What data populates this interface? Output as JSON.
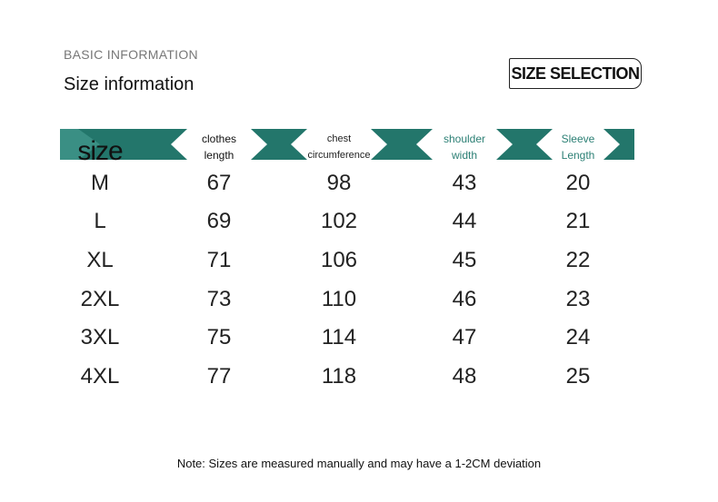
{
  "header": {
    "subtitle": "BASIC INFORMATION",
    "title": "Size information",
    "badge": "SIZE SELECTION"
  },
  "table": {
    "columns": [
      "size",
      "clothes length",
      "chest circumference",
      "shoulder width",
      "Sleeve Length"
    ],
    "rows": [
      [
        "M",
        "67",
        "98",
        "43",
        "20"
      ],
      [
        "L",
        "69",
        "102",
        "44",
        "21"
      ],
      [
        "XL",
        "71",
        "106",
        "45",
        "22"
      ],
      [
        "2XL",
        "73",
        "110",
        "46",
        "23"
      ],
      [
        "3XL",
        "75",
        "114",
        "47",
        "24"
      ],
      [
        "4XL",
        "77",
        "118",
        "48",
        "25"
      ]
    ]
  },
  "note": "Note: Sizes are measured manually and may have a 1-2CM deviation"
}
